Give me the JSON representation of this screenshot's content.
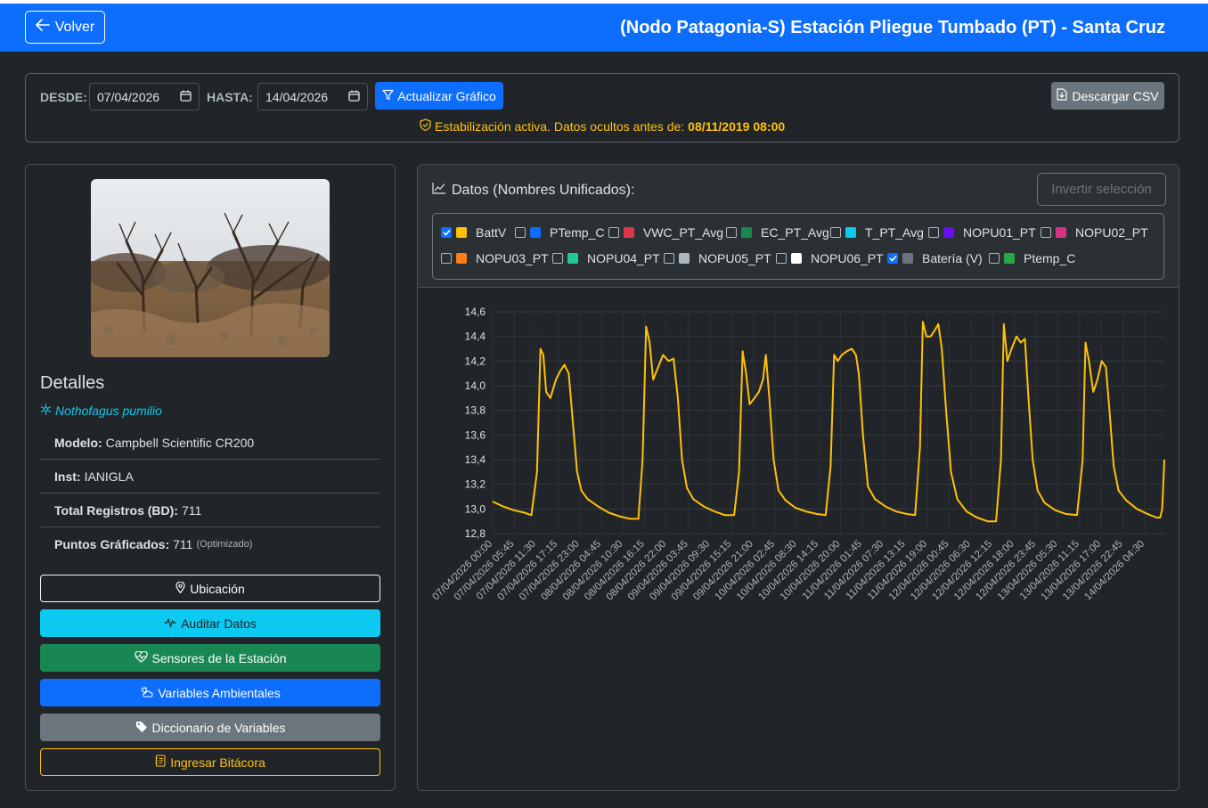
{
  "header": {
    "back_label": "Volver",
    "title": "(Nodo Patagonia-S) Estación Pliegue Tumbado (PT) - Santa Cruz"
  },
  "filters": {
    "from_label": "DESDE:",
    "from_value": "07/04/2026",
    "to_label": "HASTA:",
    "to_value": "14/04/2026",
    "update_label": "Actualizar Gráfico",
    "download_label": "Descargar CSV",
    "stabilization_text": "Estabilización activa. Datos ocultos antes de:",
    "stabilization_date": "08/11/2019 08:00"
  },
  "details": {
    "title": "Detalles",
    "species": "Nothofagus pumilio",
    "model_label": "Modelo:",
    "model_value": "Campbell Scientific CR200",
    "inst_label": "Inst:",
    "inst_value": "IANIGLA",
    "total_label": "Total Registros (BD):",
    "total_value": "711",
    "points_label": "Puntos Gráficados:",
    "points_value": "711",
    "points_note": "(Optimizado)"
  },
  "actions": [
    {
      "label": "Ubicación",
      "icon": "map-pin-icon"
    },
    {
      "label": "Auditar Datos",
      "icon": "pulse-icon"
    },
    {
      "label": "Sensores de la Estación",
      "icon": "heart-pulse-icon"
    },
    {
      "label": "Variables Ambientales",
      "icon": "cloud-sun-icon"
    },
    {
      "label": "Diccionario de Variables",
      "icon": "tags-icon"
    },
    {
      "label": "Ingresar Bitácora",
      "icon": "journal-icon"
    }
  ],
  "series_panel": {
    "title": "Datos (Nombres Unificados):",
    "invert_label": "Invertir selección",
    "items": [
      {
        "label": "BattV",
        "color": "#ffc107",
        "checked": true
      },
      {
        "label": "PTemp_C",
        "color": "#0d6efd",
        "checked": false
      },
      {
        "label": "VWC_PT_Avg",
        "color": "#dc3545",
        "checked": false
      },
      {
        "label": "EC_PT_Avg",
        "color": "#198754",
        "checked": false
      },
      {
        "label": "T_PT_Avg",
        "color": "#0dcaf0",
        "checked": false
      },
      {
        "label": "NOPU01_PT",
        "color": "#6610f2",
        "checked": false
      },
      {
        "label": "NOPU02_PT",
        "color": "#d63384",
        "checked": false
      },
      {
        "label": "NOPU03_PT",
        "color": "#fd7e14",
        "checked": false
      },
      {
        "label": "NOPU04_PT",
        "color": "#20c997",
        "checked": false
      },
      {
        "label": "NOPU05_PT",
        "color": "#adb5bd",
        "checked": false
      },
      {
        "label": "NOPU06_PT",
        "color": "#ffffff",
        "checked": false
      },
      {
        "label": "Batería (V)",
        "color": "#6c757d",
        "checked": true
      },
      {
        "label": "Ptemp_C",
        "color": "#28a745",
        "checked": false
      }
    ]
  },
  "chart_data": {
    "type": "line",
    "series": [
      {
        "name": "BattV",
        "color": "#ffc107"
      }
    ],
    "ylim": [
      12.8,
      14.6
    ],
    "yticks": [
      "12,8",
      "13,0",
      "13,2",
      "13,4",
      "13,6",
      "13,8",
      "14,0",
      "14,2",
      "14,4",
      "14,6"
    ],
    "xticks": [
      "07/04/2026 00:00",
      "07/04/2026 05:45",
      "07/04/2026 11:30",
      "07/04/2026 17:15",
      "07/04/2026 23:00",
      "08/04/2026 04:45",
      "08/04/2026 10:30",
      "08/04/2026 16:15",
      "08/04/2026 22:00",
      "09/04/2026 03:45",
      "09/04/2026 09:30",
      "09/04/2026 15:15",
      "09/04/2026 21:00",
      "10/04/2026 02:45",
      "10/04/2026 08:30",
      "10/04/2026 14:15",
      "10/04/2026 20:00",
      "11/04/2026 01:45",
      "11/04/2026 07:30",
      "11/04/2026 13:15",
      "11/04/2026 19:00",
      "12/04/2026 00:45",
      "12/04/2026 06:30",
      "12/04/2026 12:15",
      "12/04/2026 18:00",
      "12/04/2026 23:45",
      "13/04/2026 05:30",
      "13/04/2026 11:15",
      "13/04/2026 17:00",
      "13/04/2026 22:45",
      "14/04/2026 04:30"
    ],
    "points": [
      [
        0,
        13.06
      ],
      [
        1.5,
        13.02
      ],
      [
        3,
        12.99
      ],
      [
        4.5,
        12.97
      ],
      [
        5.5,
        12.95
      ],
      [
        6.3,
        13.3
      ],
      [
        6.8,
        14.3
      ],
      [
        7.2,
        14.25
      ],
      [
        7.6,
        13.95
      ],
      [
        8.2,
        13.9
      ],
      [
        9,
        14.05
      ],
      [
        9.6,
        14.12
      ],
      [
        10.2,
        14.17
      ],
      [
        10.8,
        14.1
      ],
      [
        11.4,
        13.7
      ],
      [
        12,
        13.3
      ],
      [
        12.6,
        13.15
      ],
      [
        13.5,
        13.08
      ],
      [
        15,
        13.02
      ],
      [
        16.5,
        12.97
      ],
      [
        18,
        12.94
      ],
      [
        19.5,
        12.92
      ],
      [
        20.7,
        12.92
      ],
      [
        21.3,
        13.4
      ],
      [
        21.8,
        14.48
      ],
      [
        22.3,
        14.35
      ],
      [
        22.8,
        14.05
      ],
      [
        23.5,
        14.15
      ],
      [
        24.2,
        14.25
      ],
      [
        25,
        14.2
      ],
      [
        25.7,
        14.22
      ],
      [
        26.3,
        13.9
      ],
      [
        26.9,
        13.4
      ],
      [
        27.6,
        13.17
      ],
      [
        28.5,
        13.08
      ],
      [
        30,
        13.02
      ],
      [
        31.5,
        12.98
      ],
      [
        33,
        12.95
      ],
      [
        34.3,
        12.95
      ],
      [
        35,
        13.3
      ],
      [
        35.5,
        14.28
      ],
      [
        36,
        14.1
      ],
      [
        36.5,
        13.85
      ],
      [
        37.2,
        13.9
      ],
      [
        37.8,
        13.95
      ],
      [
        38.4,
        14.05
      ],
      [
        38.8,
        14.25
      ],
      [
        39.3,
        13.9
      ],
      [
        39.9,
        13.4
      ],
      [
        40.6,
        13.15
      ],
      [
        41.6,
        13.07
      ],
      [
        43,
        13.01
      ],
      [
        44.5,
        12.98
      ],
      [
        46,
        12.96
      ],
      [
        47.3,
        12.95
      ],
      [
        48,
        13.35
      ],
      [
        48.5,
        14.25
      ],
      [
        49,
        14.2
      ],
      [
        49.6,
        14.25
      ],
      [
        50.3,
        14.28
      ],
      [
        51,
        14.3
      ],
      [
        51.6,
        14.25
      ],
      [
        52,
        14.1
      ],
      [
        52.6,
        13.6
      ],
      [
        53.3,
        13.18
      ],
      [
        54.3,
        13.08
      ],
      [
        55.8,
        13.02
      ],
      [
        57.3,
        12.98
      ],
      [
        58.8,
        12.96
      ],
      [
        60,
        12.95
      ],
      [
        60.7,
        13.5
      ],
      [
        61.1,
        14.52
      ],
      [
        61.6,
        14.4
      ],
      [
        62.2,
        14.4
      ],
      [
        62.8,
        14.45
      ],
      [
        63.3,
        14.5
      ],
      [
        63.8,
        14.3
      ],
      [
        64.4,
        13.8
      ],
      [
        65.1,
        13.3
      ],
      [
        66,
        13.08
      ],
      [
        67.3,
        12.98
      ],
      [
        68.8,
        12.93
      ],
      [
        70.3,
        12.9
      ],
      [
        71.5,
        12.9
      ],
      [
        72.2,
        13.4
      ],
      [
        72.6,
        14.5
      ],
      [
        73.1,
        14.2
      ],
      [
        73.7,
        14.3
      ],
      [
        74.4,
        14.4
      ],
      [
        75,
        14.35
      ],
      [
        75.6,
        14.38
      ],
      [
        76.1,
        13.9
      ],
      [
        76.7,
        13.4
      ],
      [
        77.4,
        13.15
      ],
      [
        78.4,
        13.05
      ],
      [
        79.9,
        12.99
      ],
      [
        81.4,
        12.96
      ],
      [
        83,
        12.95
      ],
      [
        83.8,
        13.4
      ],
      [
        84.2,
        14.35
      ],
      [
        84.7,
        14.2
      ],
      [
        85.3,
        13.95
      ],
      [
        85.9,
        14.05
      ],
      [
        86.5,
        14.2
      ],
      [
        87.1,
        14.15
      ],
      [
        87.6,
        13.8
      ],
      [
        88.2,
        13.35
      ],
      [
        88.9,
        13.15
      ],
      [
        90,
        13.07
      ],
      [
        91.5,
        13.0
      ],
      [
        93,
        12.96
      ],
      [
        94.3,
        12.93
      ],
      [
        94.8,
        12.93
      ],
      [
        95.1,
        13.0
      ],
      [
        95.4,
        13.4
      ]
    ],
    "x_max": 95.4
  }
}
